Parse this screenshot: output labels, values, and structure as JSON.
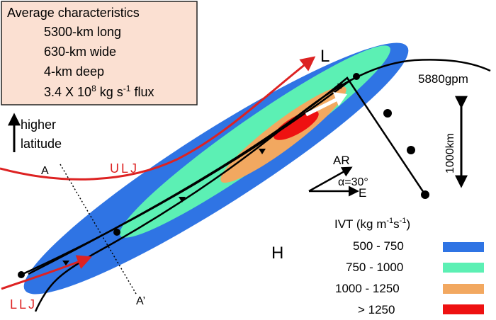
{
  "summary_box": {
    "title": "Average characteristics",
    "items": [
      "5300-km long",
      "630-km wide",
      "4-km deep"
    ],
    "flux": {
      "prefix": "3.4 X 10",
      "exponent": "8",
      "suffix": " kg s",
      "unit_exp": "-1",
      "tail": " flux"
    },
    "fill": "#fbe0d2"
  },
  "labels": {
    "higher": "higher",
    "latitude": "latitude",
    "ulj": "ULJ",
    "llj": "LLJ",
    "a": "A",
    "a_prime": "A’",
    "low": "L",
    "high": "H",
    "contour": "5880gpm",
    "scale": "1000km",
    "ar": "AR",
    "alpha": "α=30°",
    "east": "E"
  },
  "legend": {
    "title_prefix": "IVT (kg m",
    "title_exp1": "-1",
    "title_mid": "s",
    "title_exp2": "-1",
    "title_suffix": ")",
    "items": [
      {
        "label": "500 - 750",
        "color": "#2f74e4"
      },
      {
        "label": "750 - 1000",
        "color": "#5cf0b4"
      },
      {
        "label": "1000 - 1250",
        "color": "#f2a860"
      },
      {
        "label": "> 1250",
        "color": "#ee1111"
      }
    ]
  },
  "colors": {
    "jet": "#dd2222",
    "front": "#000000"
  }
}
